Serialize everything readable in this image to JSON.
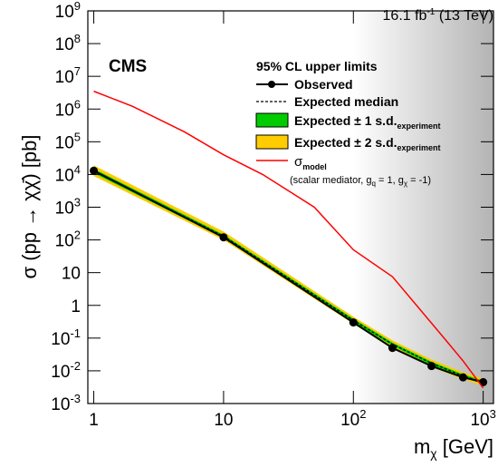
{
  "chart_data": {
    "type": "line",
    "experiment_label": "CMS",
    "lumi": {
      "text": "16.1 fb",
      "sup": "-1",
      "rest": "(13 TeV)"
    },
    "legend_title": "95% CL upper limits",
    "x_label": {
      "main": "m",
      "sub": "χ",
      "rest": "[GeV]"
    },
    "y_label": "σ (pp → χχ̄) [pb]",
    "xscale": "log",
    "yscale": "log",
    "xlim": [
      0.9,
      1200
    ],
    "ylim": [
      0.001,
      1000000000
    ],
    "xticks": [
      1,
      10,
      {
        "value": 100,
        "label": "10",
        "exponent": "2"
      },
      {
        "value": 1000,
        "label": "10",
        "exponent": "3"
      }
    ],
    "yticks": [
      {
        "value": 0.001,
        "label": "10",
        "exponent": "-3"
      },
      {
        "value": 0.01,
        "label": "10",
        "exponent": "-2"
      },
      {
        "value": 0.1,
        "label": "10",
        "exponent": "-1"
      },
      1,
      10,
      {
        "value": 100,
        "label": "10",
        "exponent": "2"
      },
      {
        "value": 1000,
        "label": "10",
        "exponent": "3"
      },
      {
        "value": 10000,
        "label": "10",
        "exponent": "4"
      },
      {
        "value": 100000,
        "label": "10",
        "exponent": "5"
      },
      {
        "value": 1000000,
        "label": "10",
        "exponent": "6"
      },
      {
        "value": 10000000,
        "label": "10",
        "exponent": "7"
      },
      {
        "value": 100000000,
        "label": "10",
        "exponent": "8"
      },
      {
        "value": 1000000000,
        "label": "10",
        "exponent": "9"
      }
    ],
    "x": [
      1,
      10,
      100,
      200,
      400,
      700,
      1000
    ],
    "observed": {
      "name": "Observed",
      "color": "#000000",
      "values": [
        13000,
        120,
        0.3,
        0.05,
        0.014,
        0.0063,
        0.0045
      ]
    },
    "expected": {
      "name": "Expected median",
      "color": "#000000",
      "values": [
        13000,
        130,
        0.35,
        0.065,
        0.017,
        0.007,
        0.0045
      ]
    },
    "band1": {
      "name": "Expected ± 1 s.d.",
      "name_sub": "experiment",
      "color": "#00cc00",
      "lower": [
        11000,
        115,
        0.31,
        0.058,
        0.015,
        0.0062,
        0.004
      ],
      "upper": [
        15000,
        145,
        0.39,
        0.073,
        0.019,
        0.0078,
        0.005
      ]
    },
    "band2": {
      "name": "Expected ± 2 s.d.",
      "name_sub": "experiment",
      "color": "#ffcc00",
      "lower": [
        9000,
        100,
        0.27,
        0.05,
        0.013,
        0.0055,
        0.0035
      ],
      "upper": [
        19000,
        180,
        0.45,
        0.085,
        0.022,
        0.009,
        0.0058
      ]
    },
    "model": {
      "name": "σ",
      "name_sub": "model",
      "color": "#ff0000",
      "note": [
        "(scalar mediator, g",
        "q",
        " = 1, g",
        "χ",
        " = -1)"
      ],
      "x": [
        1,
        2,
        5,
        10,
        20,
        50,
        100,
        200,
        500,
        700,
        1000
      ],
      "values": [
        3500000,
        1200000,
        200000,
        40000,
        10000,
        1000,
        50,
        7.5,
        0.1,
        0.02,
        0.003
      ]
    }
  }
}
